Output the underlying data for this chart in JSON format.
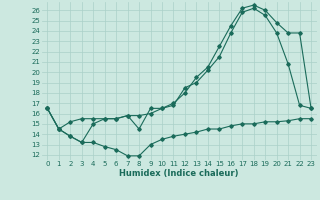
{
  "xlabel": "Humidex (Indice chaleur)",
  "background_color": "#cce8e0",
  "grid_color": "#aad0c8",
  "line_color": "#1a6b5a",
  "xlim": [
    -0.5,
    23.5
  ],
  "ylim": [
    11.5,
    26.8
  ],
  "xticks": [
    0,
    1,
    2,
    3,
    4,
    5,
    6,
    7,
    8,
    9,
    10,
    11,
    12,
    13,
    14,
    15,
    16,
    17,
    18,
    19,
    20,
    21,
    22,
    23
  ],
  "yticks": [
    12,
    13,
    14,
    15,
    16,
    17,
    18,
    19,
    20,
    21,
    22,
    23,
    24,
    25,
    26
  ],
  "line1_x": [
    0,
    1,
    2,
    3,
    4,
    5,
    6,
    7,
    8,
    9,
    10,
    11,
    12,
    13,
    14,
    15,
    16,
    17,
    18,
    19,
    20,
    21,
    22,
    23
  ],
  "line1_y": [
    16.5,
    14.5,
    13.8,
    13.2,
    13.2,
    12.8,
    12.5,
    11.9,
    11.9,
    13.0,
    13.5,
    13.8,
    14.0,
    14.2,
    14.5,
    14.5,
    14.8,
    15.0,
    15.0,
    15.2,
    15.2,
    15.3,
    15.5,
    15.5
  ],
  "line2_x": [
    0,
    1,
    2,
    3,
    4,
    5,
    6,
    7,
    8,
    9,
    10,
    11,
    12,
    13,
    14,
    15,
    16,
    17,
    18,
    19,
    20,
    21,
    22,
    23
  ],
  "line2_y": [
    16.5,
    14.5,
    13.8,
    13.2,
    15.0,
    15.5,
    15.5,
    15.8,
    14.5,
    16.5,
    16.5,
    16.8,
    18.5,
    19.0,
    20.2,
    21.5,
    23.8,
    25.8,
    26.2,
    25.5,
    23.8,
    20.8,
    16.8,
    16.5
  ],
  "line3_x": [
    0,
    1,
    2,
    3,
    4,
    5,
    6,
    7,
    8,
    9,
    10,
    11,
    12,
    13,
    14,
    15,
    16,
    17,
    18,
    19,
    20,
    21,
    22,
    23
  ],
  "line3_y": [
    16.5,
    14.5,
    15.2,
    15.5,
    15.5,
    15.5,
    15.5,
    15.8,
    15.8,
    16.0,
    16.5,
    17.0,
    18.0,
    19.5,
    20.5,
    22.5,
    24.5,
    26.2,
    26.5,
    26.0,
    24.8,
    23.8,
    23.8,
    16.5
  ],
  "figsize": [
    3.2,
    2.0
  ],
  "dpi": 100
}
